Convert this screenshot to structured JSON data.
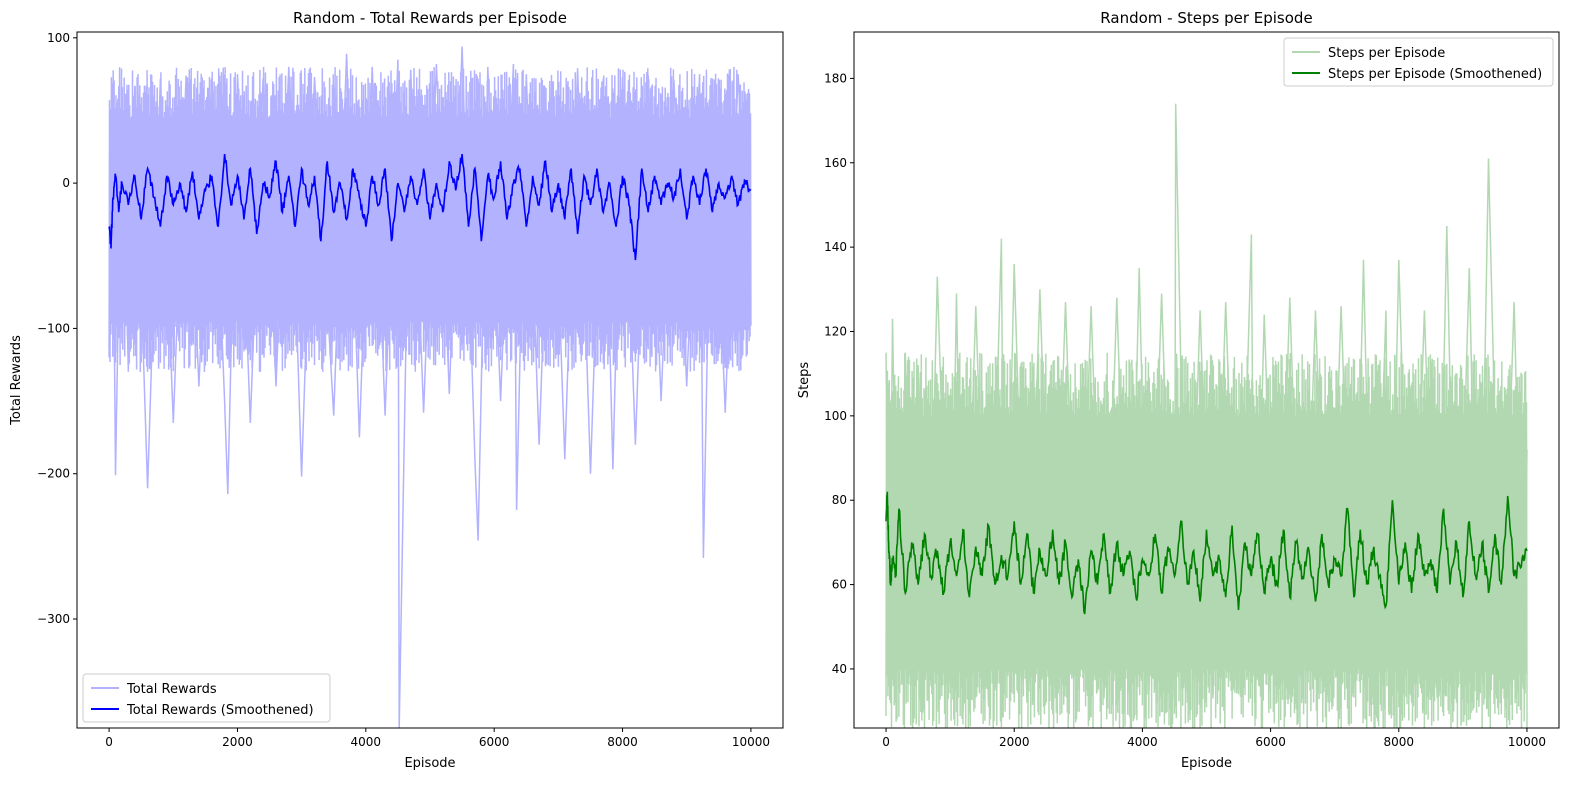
{
  "figure": {
    "background": "#ffffff"
  },
  "chart_data": [
    {
      "type": "line",
      "title": "Random - Total Rewards per Episode",
      "xlabel": "Episode",
      "ylabel": "Total Rewards",
      "xlim": [
        -500,
        10500
      ],
      "ylim": [
        -375,
        104
      ],
      "xticks": [
        0,
        2000,
        4000,
        6000,
        8000,
        10000
      ],
      "xtick_labels": [
        "0",
        "2000",
        "4000",
        "6000",
        "8000",
        "10000"
      ],
      "yticks": [
        -300,
        -200,
        -100,
        0,
        100
      ],
      "ytick_labels": [
        "−300",
        "−200",
        "−100",
        "0",
        "100"
      ],
      "grid": false,
      "legend_position": "lower-left",
      "raw_band": {
        "x": [
          0,
          10000
        ],
        "low": -95,
        "high": 45
      },
      "series": [
        {
          "name": "Total Rewards",
          "color": "#b2b2ff",
          "x": [
            0,
            50,
            100,
            200,
            300,
            400,
            600,
            800,
            1000,
            1200,
            1400,
            1600,
            1800,
            1850,
            2000,
            2200,
            2400,
            2600,
            2800,
            3000,
            3200,
            3500,
            3700,
            3900,
            4100,
            4300,
            4500,
            4520,
            4700,
            4900,
            5100,
            5300,
            5500,
            5700,
            5750,
            5900,
            6100,
            6300,
            6350,
            6500,
            6700,
            6900,
            7100,
            7300,
            7500,
            7700,
            7850,
            8000,
            8200,
            8400,
            8600,
            8800,
            9000,
            9200,
            9260,
            9400,
            9600,
            9800,
            10000
          ],
          "values": [
            -113,
            64,
            -201,
            60,
            -128,
            67,
            -210,
            72,
            -165,
            74,
            -140,
            72,
            -150,
            -214,
            75,
            -165,
            72,
            -140,
            80,
            -202,
            73,
            -160,
            89,
            -175,
            80,
            -160,
            85,
            -375,
            78,
            -158,
            82,
            -145,
            94,
            -190,
            -246,
            80,
            -150,
            82,
            -225,
            75,
            -180,
            70,
            -190,
            79,
            -200,
            72,
            -197,
            73,
            -180,
            74,
            -150,
            71,
            -140,
            75,
            -258,
            72,
            -158,
            75,
            -97
          ]
        },
        {
          "name": "Total Rewards (Smoothened)",
          "color": "#0000ff",
          "x": [
            0,
            30,
            60,
            100,
            150,
            200,
            300,
            400,
            500,
            600,
            700,
            800,
            900,
            1000,
            1100,
            1200,
            1300,
            1400,
            1500,
            1600,
            1700,
            1800,
            1900,
            2000,
            2100,
            2200,
            2300,
            2400,
            2500,
            2600,
            2700,
            2800,
            2900,
            3000,
            3100,
            3200,
            3300,
            3400,
            3500,
            3600,
            3700,
            3800,
            3900,
            4000,
            4100,
            4200,
            4300,
            4400,
            4500,
            4600,
            4700,
            4800,
            4900,
            5000,
            5100,
            5200,
            5300,
            5400,
            5500,
            5600,
            5700,
            5800,
            5900,
            6000,
            6100,
            6200,
            6300,
            6400,
            6500,
            6600,
            6700,
            6800,
            6900,
            7000,
            7100,
            7200,
            7300,
            7400,
            7500,
            7600,
            7700,
            7800,
            7900,
            8000,
            8100,
            8200,
            8300,
            8400,
            8500,
            8600,
            8700,
            8800,
            8900,
            9000,
            9100,
            9200,
            9300,
            9400,
            9500,
            9600,
            9700,
            9800,
            9900,
            10000
          ],
          "values": [
            -30,
            -45,
            -10,
            5,
            -20,
            0,
            -15,
            5,
            -25,
            10,
            -10,
            -30,
            5,
            -15,
            0,
            -20,
            8,
            -25,
            -5,
            5,
            -30,
            20,
            -15,
            5,
            -25,
            10,
            -35,
            0,
            -10,
            15,
            -20,
            5,
            -30,
            10,
            -15,
            5,
            -40,
            15,
            -20,
            0,
            -25,
            10,
            -10,
            -30,
            5,
            -15,
            10,
            -40,
            0,
            -20,
            5,
            -15,
            10,
            -25,
            0,
            -20,
            15,
            -5,
            20,
            -30,
            10,
            -40,
            5,
            -10,
            15,
            -25,
            0,
            10,
            -30,
            5,
            -15,
            15,
            -20,
            0,
            -25,
            10,
            -35,
            5,
            -15,
            10,
            -20,
            0,
            -30,
            5,
            -15,
            -53,
            10,
            -20,
            5,
            -15,
            0,
            -10,
            10,
            -25,
            5,
            -15,
            10,
            -20,
            0,
            -10,
            5,
            -15,
            2,
            -5
          ]
        }
      ]
    },
    {
      "type": "line",
      "title": "Random - Steps per Episode",
      "xlabel": "Episode",
      "ylabel": "Steps",
      "xlim": [
        -500,
        10500
      ],
      "ylim": [
        26,
        191
      ],
      "xticks": [
        0,
        2000,
        4000,
        6000,
        8000,
        10000
      ],
      "xtick_labels": [
        "0",
        "2000",
        "4000",
        "6000",
        "8000",
        "10000"
      ],
      "yticks": [
        40,
        60,
        80,
        100,
        120,
        140,
        160,
        180
      ],
      "ytick_labels": [
        "40",
        "60",
        "80",
        "100",
        "120",
        "140",
        "160",
        "180"
      ],
      "grid": false,
      "legend_position": "upper-right",
      "raw_band": {
        "x": [
          0,
          10000
        ],
        "low": 40,
        "high": 100
      },
      "series": [
        {
          "name": "Steps per Episode",
          "color": "#b2d8b2",
          "x": [
            0,
            50,
            100,
            200,
            300,
            400,
            500,
            650,
            800,
            1000,
            1100,
            1200,
            1400,
            1600,
            1800,
            1850,
            2000,
            2200,
            2400,
            2600,
            2800,
            3000,
            3200,
            3400,
            3600,
            3800,
            3950,
            4100,
            4300,
            4500,
            4520,
            4700,
            4900,
            5100,
            5300,
            5500,
            5700,
            5750,
            5900,
            6100,
            6300,
            6500,
            6700,
            6900,
            7100,
            7300,
            7450,
            7600,
            7800,
            7850,
            8000,
            8200,
            8400,
            8600,
            8750,
            8900,
            9100,
            9250,
            9400,
            9600,
            9800,
            9950,
            10000
          ],
          "values": [
            115,
            42,
            123,
            35,
            115,
            38,
            112,
            34,
            133,
            36,
            129,
            30,
            126,
            31,
            142,
            34,
            136,
            32,
            130,
            34,
            127,
            35,
            126,
            33,
            128,
            34,
            135,
            34,
            129,
            33,
            174,
            32,
            125,
            33,
            127,
            34,
            143,
            32,
            124,
            34,
            128,
            33,
            125,
            32,
            126,
            35,
            137,
            33,
            125,
            29,
            137,
            32,
            125,
            33,
            145,
            32,
            135,
            31,
            161,
            33,
            127,
            35,
            92
          ]
        },
        {
          "name": "Steps per Episode (Smoothened)",
          "color": "#008000",
          "x": [
            0,
            20,
            40,
            70,
            100,
            150,
            200,
            300,
            400,
            500,
            600,
            700,
            800,
            900,
            1000,
            1100,
            1200,
            1300,
            1400,
            1500,
            1600,
            1700,
            1800,
            1900,
            2000,
            2100,
            2200,
            2300,
            2400,
            2500,
            2600,
            2700,
            2800,
            2900,
            3000,
            3100,
            3200,
            3300,
            3400,
            3500,
            3600,
            3700,
            3800,
            3900,
            4000,
            4100,
            4200,
            4300,
            4400,
            4500,
            4600,
            4700,
            4800,
            4900,
            5000,
            5100,
            5200,
            5300,
            5400,
            5500,
            5600,
            5700,
            5800,
            5900,
            6000,
            6100,
            6200,
            6300,
            6400,
            6500,
            6600,
            6700,
            6800,
            6900,
            7000,
            7100,
            7200,
            7300,
            7400,
            7500,
            7600,
            7700,
            7800,
            7900,
            8000,
            8100,
            8200,
            8300,
            8400,
            8500,
            8600,
            8700,
            8800,
            8900,
            9000,
            9100,
            9200,
            9300,
            9400,
            9500,
            9600,
            9700,
            9800,
            9900,
            10000
          ],
          "values": [
            75,
            82,
            70,
            60,
            66,
            62,
            78,
            58,
            70,
            60,
            72,
            62,
            68,
            58,
            70,
            62,
            73,
            57,
            69,
            62,
            74,
            60,
            67,
            62,
            75,
            60,
            72,
            58,
            68,
            62,
            73,
            60,
            70,
            57,
            66,
            53,
            68,
            60,
            72,
            58,
            70,
            62,
            68,
            57,
            66,
            62,
            72,
            58,
            69,
            62,
            75,
            60,
            68,
            56,
            73,
            62,
            66,
            57,
            74,
            54,
            70,
            62,
            72,
            58,
            66,
            60,
            73,
            57,
            70,
            62,
            68,
            56,
            72,
            60,
            66,
            62,
            78,
            57,
            73,
            60,
            68,
            62,
            55,
            80,
            60,
            70,
            58,
            72,
            62,
            66,
            58,
            78,
            60,
            70,
            57,
            75,
            62,
            70,
            58,
            72,
            60,
            81,
            62,
            64,
            68
          ]
        }
      ]
    }
  ]
}
